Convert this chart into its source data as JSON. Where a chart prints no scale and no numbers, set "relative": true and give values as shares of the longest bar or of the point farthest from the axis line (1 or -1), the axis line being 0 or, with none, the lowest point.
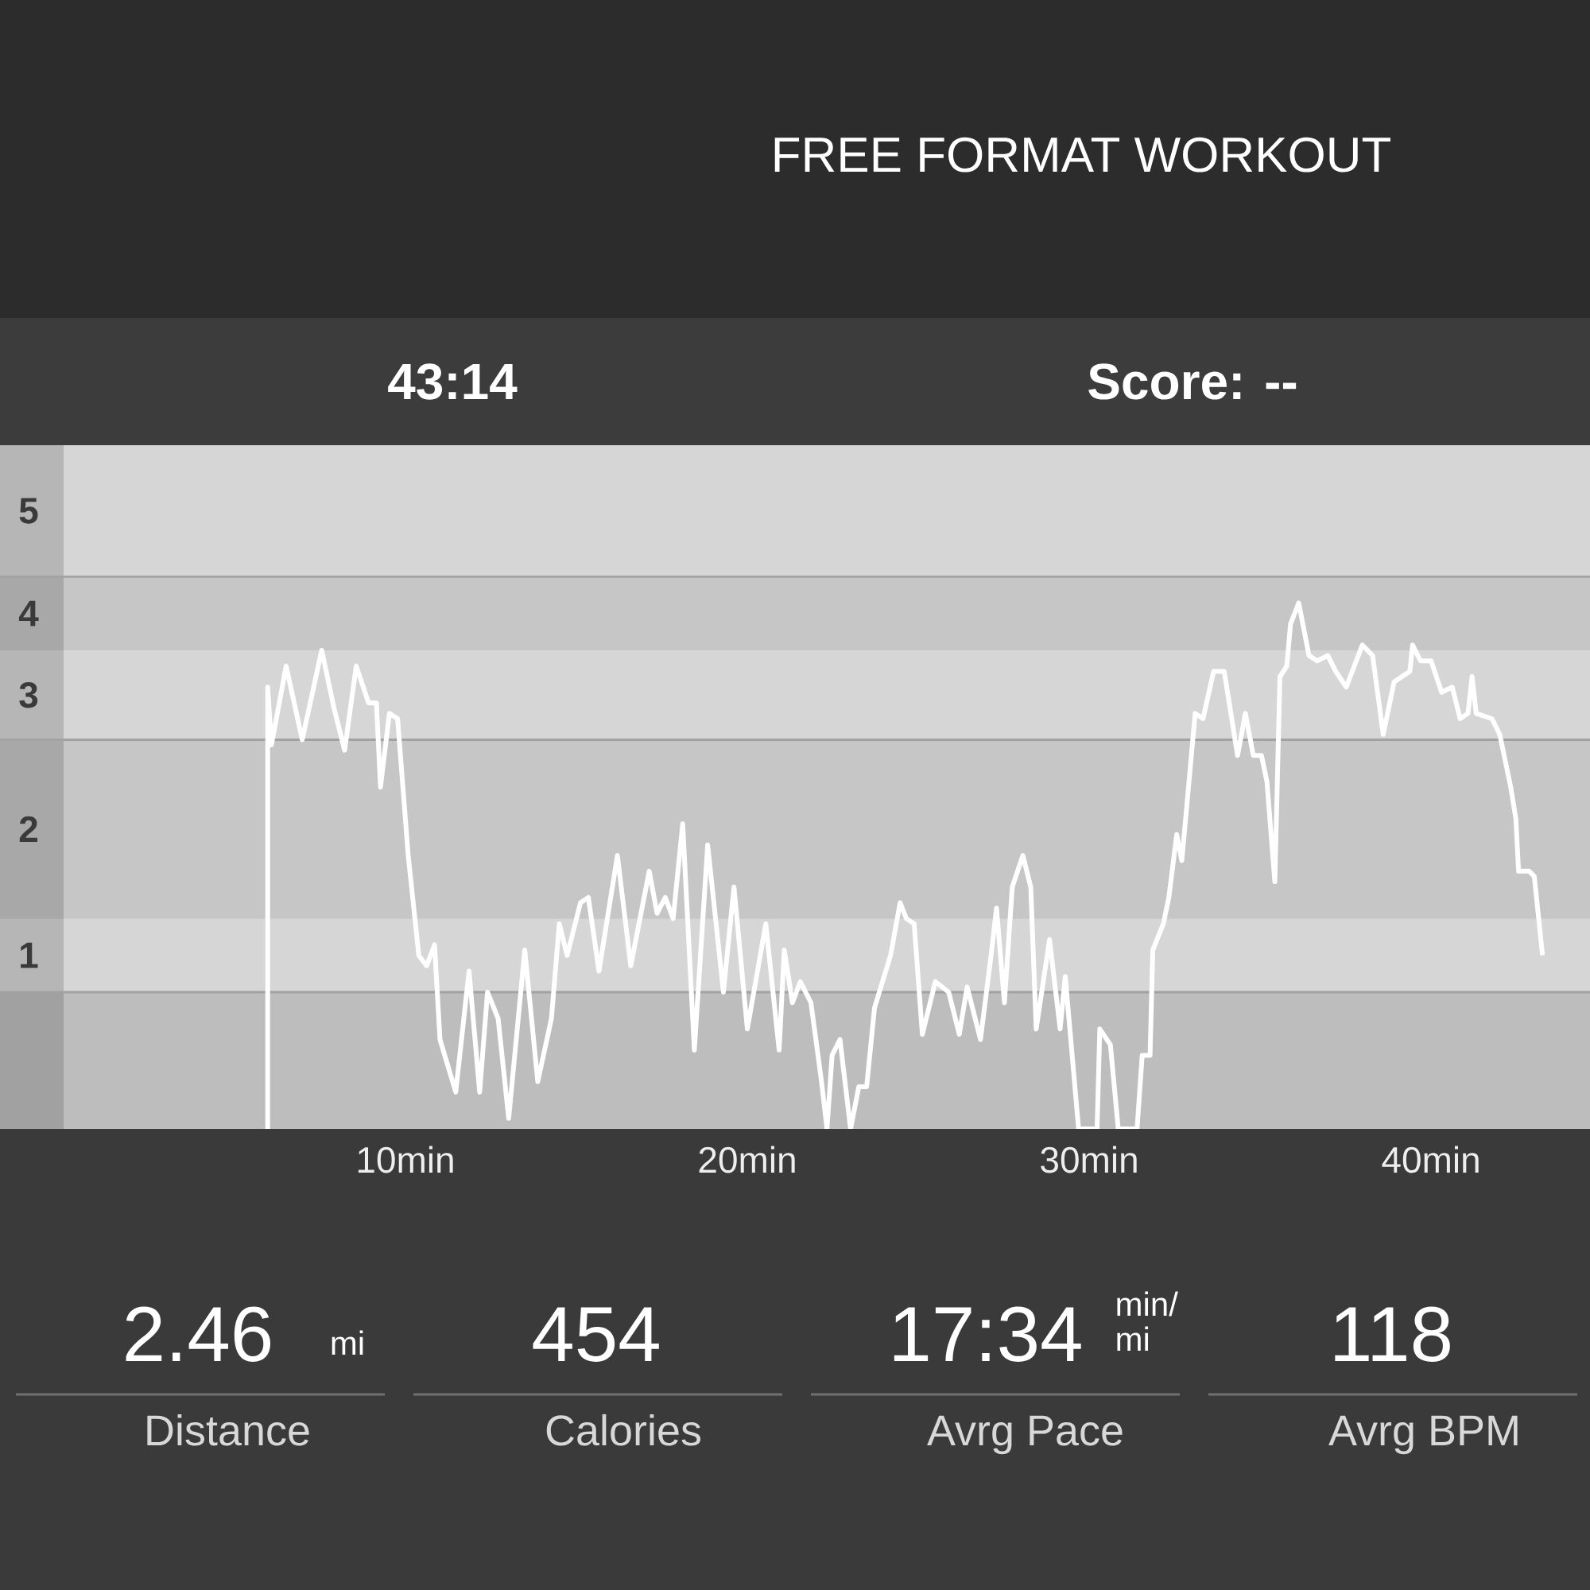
{
  "chart_data": {
    "type": "line",
    "title": "FREE FORMAT WORKOUT",
    "relative": true,
    "xlim": [
      0,
      44.65
    ],
    "xticks": [
      {
        "value": 10,
        "label": "10min"
      },
      {
        "value": 20,
        "label": "20min"
      },
      {
        "value": 30,
        "label": "30min"
      },
      {
        "value": 40,
        "label": "40min"
      }
    ],
    "x": [
      5.97,
      5.97,
      6.08,
      6.51,
      6.98,
      7.55,
      7.91,
      8.22,
      8.56,
      8.92,
      9.15,
      9.27,
      9.53,
      9.77,
      10.08,
      10.39,
      10.62,
      10.85,
      11.01,
      11.47,
      11.86,
      12.17,
      12.4,
      12.71,
      13.02,
      13.49,
      13.87,
      14.27,
      14.5,
      14.73,
      15.12,
      15.35,
      15.66,
      16.2,
      16.59,
      17.13,
      17.36,
      17.6,
      17.83,
      18.11,
      18.45,
      18.84,
      19.3,
      19.61,
      20.0,
      20.54,
      20.93,
      21.08,
      21.32,
      21.55,
      21.86,
      22.17,
      22.33,
      22.48,
      22.71,
      23.02,
      23.26,
      23.49,
      23.72,
      24.19,
      24.47,
      24.65,
      24.88,
      25.12,
      25.5,
      25.89,
      26.2,
      26.43,
      26.82,
      27.13,
      27.29,
      27.52,
      27.75,
      28.06,
      28.29,
      28.45,
      28.84,
      29.15,
      29.3,
      29.69,
      30.23,
      30.31,
      30.62,
      30.85,
      31.4,
      31.55,
      31.78,
      31.86,
      32.17,
      32.33,
      32.56,
      32.71,
      33.1,
      33.33,
      33.64,
      33.95,
      34.34,
      34.57,
      34.8,
      35.04,
      35.2,
      35.43,
      35.58,
      35.78,
      35.89,
      36.13,
      36.43,
      36.67,
      36.98,
      37.21,
      37.52,
      37.99,
      38.29,
      38.6,
      38.92,
      39.38,
      39.46,
      39.69,
      40.0,
      40.31,
      40.62,
      40.85,
      41.08,
      41.2,
      41.32,
      41.78,
      42.01,
      42.33,
      42.48,
      42.56,
      42.87,
      43.02,
      43.26
    ],
    "series": [
      {
        "color": "#ffffff",
        "values": [
          0,
          0.84,
          0.73,
          0.88,
          0.74,
          0.91,
          0.8,
          0.72,
          0.88,
          0.81,
          0.81,
          0.65,
          0.79,
          0.78,
          0.52,
          0.33,
          0.31,
          0.35,
          0.17,
          0.07,
          0.3,
          0.07,
          0.26,
          0.21,
          0.02,
          0.34,
          0.09,
          0.21,
          0.39,
          0.33,
          0.43,
          0.44,
          0.3,
          0.52,
          0.31,
          0.49,
          0.41,
          0.44,
          0.4,
          0.58,
          0.15,
          0.54,
          0.26,
          0.46,
          0.19,
          0.39,
          0.15,
          0.34,
          0.24,
          0.28,
          0.24,
          0.09,
          0,
          0.14,
          0.17,
          0,
          0.08,
          0.08,
          0.23,
          0.33,
          0.43,
          0.4,
          0.39,
          0.18,
          0.28,
          0.26,
          0.18,
          0.27,
          0.17,
          0.33,
          0.42,
          0.24,
          0.46,
          0.52,
          0.46,
          0.19,
          0.36,
          0.19,
          0.29,
          0,
          0,
          0.19,
          0.16,
          0,
          0,
          0.14,
          0.14,
          0.34,
          0.39,
          0.44,
          0.56,
          0.51,
          0.79,
          0.78,
          0.87,
          0.87,
          0.71,
          0.79,
          0.71,
          0.71,
          0.66,
          0.47,
          0.86,
          0.88,
          0.96,
          1,
          0.9,
          0.89,
          0.9,
          0.87,
          0.84,
          0.92,
          0.9,
          0.75,
          0.85,
          0.87,
          0.92,
          0.89,
          0.89,
          0.83,
          0.84,
          0.78,
          0.79,
          0.86,
          0.79,
          0.78,
          0.75,
          0.65,
          0.59,
          0.49,
          0.49,
          0.48,
          0.33
        ]
      }
    ],
    "bands": [
      {
        "axis": "y",
        "from": 1.05,
        "to": 1.3,
        "label": "5",
        "color": "#d6d6d6"
      },
      {
        "axis": "y",
        "from": 0.91,
        "to": 1.05,
        "label": "4",
        "color": "#c6c6c6"
      },
      {
        "axis": "y",
        "from": 0.74,
        "to": 0.91,
        "label": "3",
        "color": "#d6d6d6"
      },
      {
        "axis": "y",
        "from": 0.4,
        "to": 0.74,
        "label": "2",
        "color": "#c6c6c6"
      },
      {
        "axis": "y",
        "from": 0.26,
        "to": 0.4,
        "label": "1",
        "color": "#d6d6d6"
      }
    ],
    "ref_lines": [
      {
        "axis": "y",
        "value": 1.05,
        "color": "#a2a2a2"
      },
      {
        "axis": "y",
        "value": 0.74,
        "color": "#a2a2a2"
      },
      {
        "axis": "y",
        "value": 0.26,
        "color": "#a2a2a2"
      }
    ],
    "annotations": [
      "43:14",
      "Score: --",
      "2.46",
      "mi",
      "454",
      "17:34",
      "min/ mi",
      "118",
      "Distance",
      "Calories",
      "Avrg Pace",
      "Avrg BPM"
    ]
  }
}
